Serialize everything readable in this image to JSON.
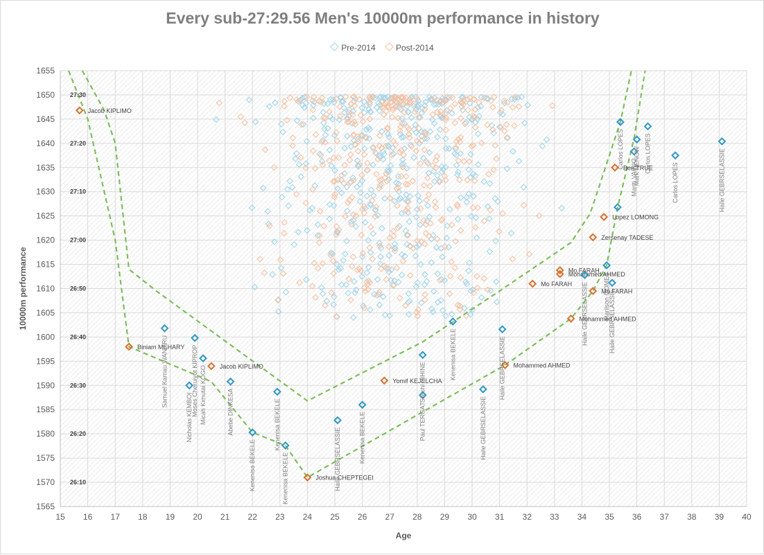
{
  "chart_data": {
    "type": "scatter",
    "title": "Every sub-27:29.56 Men's 10000m performance in history",
    "xlabel": "Age",
    "ylabel": "10000m performance",
    "xlim": [
      15,
      40
    ],
    "ylim": [
      1565,
      1655
    ],
    "x_ticks": [
      "15",
      "16",
      "17",
      "18",
      "19",
      "20",
      "21",
      "22",
      "23",
      "24",
      "25",
      "26",
      "27",
      "28",
      "29",
      "30",
      "31",
      "32",
      "33",
      "34",
      "35",
      "36",
      "37",
      "38",
      "39",
      "40"
    ],
    "y_ticks": [
      "1565",
      "1570",
      "1575",
      "1580",
      "1585",
      "1590",
      "1595",
      "1600",
      "1605",
      "1610",
      "1615",
      "1620",
      "1625",
      "1630",
      "1635",
      "1640",
      "1645",
      "1650",
      "1655"
    ],
    "time_labels": [
      {
        "text": "27:30",
        "y": 1650
      },
      {
        "text": "27:20",
        "y": 1640
      },
      {
        "text": "27:10",
        "y": 1630
      },
      {
        "text": "27:00",
        "y": 1620
      },
      {
        "text": "26:50",
        "y": 1610
      },
      {
        "text": "26:40",
        "y": 1600
      },
      {
        "text": "26:30",
        "y": 1590
      },
      {
        "text": "26:20",
        "y": 1580
      },
      {
        "text": "26:10",
        "y": 1570
      }
    ],
    "legend_position": "top",
    "grid": true,
    "colors": {
      "pre": "#9fd4ea",
      "post": "#f4bfa0",
      "pre_highlight": "#2e97c4",
      "post_highlight": "#d8702d",
      "envelope": "#7dbd5b",
      "axis_text": "#595959",
      "label_text": "#404040",
      "vertical_label": "#7f7f7f"
    },
    "series": [
      {
        "name": "Pre-2014",
        "key": "pre"
      },
      {
        "name": "Post-2014",
        "key": "post"
      }
    ],
    "highlighted": [
      {
        "series": "post",
        "x": 15.7,
        "y": 1646.8,
        "label": "Jacob KIPLIMO",
        "dir": "h"
      },
      {
        "series": "post",
        "x": 17.5,
        "y": 1598.0,
        "label": "Biniam MEHARY",
        "dir": "h"
      },
      {
        "series": "post",
        "x": 20.5,
        "y": 1594.0,
        "label": "Jacob KIPLIMO",
        "dir": "h"
      },
      {
        "series": "post",
        "x": 26.8,
        "y": 1591.0,
        "label": "Yomif KEJELCHA",
        "dir": "h"
      },
      {
        "series": "post",
        "x": 24.0,
        "y": 1571.0,
        "label": "Joshua CHEPTEGEI",
        "dir": "h"
      },
      {
        "series": "post",
        "x": 31.2,
        "y": 1594.2,
        "label": "Mohammed AHMED",
        "dir": "h"
      },
      {
        "series": "post",
        "x": 32.2,
        "y": 1611.0,
        "label": "Mo FARAH",
        "dir": "h"
      },
      {
        "series": "post",
        "x": 33.2,
        "y": 1613.8,
        "label": "Mo FARAH",
        "dir": "h"
      },
      {
        "series": "post",
        "x": 33.2,
        "y": 1613.0,
        "label": "Mohammed AHMED",
        "dir": "h"
      },
      {
        "series": "post",
        "x": 33.6,
        "y": 1603.8,
        "label": "Mohammed AHMED",
        "dir": "h"
      },
      {
        "series": "post",
        "x": 34.4,
        "y": 1609.5,
        "label": "Mo FARAH",
        "dir": "h"
      },
      {
        "series": "post",
        "x": 34.4,
        "y": 1620.6,
        "label": "Zersenay TADESE",
        "dir": "h"
      },
      {
        "series": "post",
        "x": 34.8,
        "y": 1624.8,
        "label": "Lopez LOMONG",
        "dir": "h"
      },
      {
        "series": "post",
        "x": 35.2,
        "y": 1635.0,
        "label": "Ben TRUE",
        "dir": "h"
      },
      {
        "series": "pre",
        "x": 18.8,
        "y": 1601.8,
        "label": "Samuel Kamau WANJIRU",
        "dir": "v"
      },
      {
        "series": "pre",
        "x": 19.7,
        "y": 1590.0,
        "label": "Nicholas KEMBOI",
        "dir": "v"
      },
      {
        "series": "pre",
        "x": 19.9,
        "y": 1599.8,
        "label": "Moses Cheruiyot KIPROP",
        "dir": "v"
      },
      {
        "series": "pre",
        "x": 20.2,
        "y": 1595.6,
        "label": "Micah Kimutai KOGO",
        "dir": "v"
      },
      {
        "series": "pre",
        "x": 21.2,
        "y": 1590.8,
        "label": "Abebe DINKESA",
        "dir": "v"
      },
      {
        "series": "pre",
        "x": 22.0,
        "y": 1580.3,
        "label": "Kenenisa BEKELE",
        "dir": "v"
      },
      {
        "series": "pre",
        "x": 22.9,
        "y": 1588.7,
        "label": "Kenenisa BEKELE",
        "dir": "v"
      },
      {
        "series": "pre",
        "x": 23.2,
        "y": 1577.6,
        "label": "Kenenisa BEKELE",
        "dir": "v"
      },
      {
        "series": "pre",
        "x": 25.1,
        "y": 1582.8,
        "label": "Haile GEBRSELASSIE",
        "dir": "v"
      },
      {
        "series": "pre",
        "x": 26.0,
        "y": 1586.0,
        "label": "Kenenisa BEKELE",
        "dir": "v"
      },
      {
        "series": "pre",
        "x": 28.2,
        "y": 1588.0,
        "label": "Paul TERGAT",
        "dir": "v"
      },
      {
        "series": "pre",
        "x": 28.2,
        "y": 1596.3,
        "label": "Sileshi SIHINE",
        "dir": "v"
      },
      {
        "series": "pre",
        "x": 29.3,
        "y": 1603.2,
        "label": "Kenenisa BEKELE",
        "dir": "v"
      },
      {
        "series": "pre",
        "x": 30.4,
        "y": 1589.2,
        "label": "Haile GEBRSELASSIE",
        "dir": "v"
      },
      {
        "series": "pre",
        "x": 31.1,
        "y": 1601.6,
        "label": "Haile GEBRSELASSIE",
        "dir": "v"
      },
      {
        "series": "pre",
        "x": 34.1,
        "y": 1612.8,
        "label": "Haile GEBRSELASSIE",
        "dir": "v"
      },
      {
        "series": "pre",
        "x": 34.9,
        "y": 1614.8,
        "label": "Marilson GOMES",
        "dir": "v"
      },
      {
        "series": "pre",
        "x": 35.1,
        "y": 1611.2,
        "label": "Haile GEBRSELASSIE",
        "dir": "v"
      },
      {
        "series": "pre",
        "x": 35.3,
        "y": 1626.8,
        "label": "",
        "dir": "v"
      },
      {
        "series": "pre",
        "x": 35.4,
        "y": 1644.4,
        "label": "Carlos LOPES",
        "dir": "v"
      },
      {
        "series": "pre",
        "x": 35.9,
        "y": 1638.3,
        "label": "Martti VAINIO",
        "dir": "v"
      },
      {
        "series": "pre",
        "x": 36.0,
        "y": 1640.8,
        "label": "Mark NENOW",
        "dir": "v"
      },
      {
        "series": "pre",
        "x": 36.4,
        "y": 1643.5,
        "label": "Carlos LOPES",
        "dir": "v"
      },
      {
        "series": "pre",
        "x": 37.4,
        "y": 1637.5,
        "label": "Carlos LOPES",
        "dir": "v"
      },
      {
        "series": "pre",
        "x": 39.1,
        "y": 1640.4,
        "label": "Haile GEBRSELASSIE",
        "dir": "v"
      }
    ],
    "envelope": [
      {
        "name": "outer",
        "points": [
          [
            15.3,
            1655
          ],
          [
            16.0,
            1645
          ],
          [
            17.0,
            1620
          ],
          [
            17.5,
            1598
          ],
          [
            20.5,
            1590.8
          ],
          [
            22.0,
            1580.3
          ],
          [
            23.2,
            1577.6
          ],
          [
            24.0,
            1571.0
          ],
          [
            31.2,
            1594.2
          ],
          [
            33.6,
            1603.8
          ],
          [
            34.4,
            1609.5
          ],
          [
            34.9,
            1614.8
          ],
          [
            35.3,
            1626.8
          ],
          [
            35.9,
            1641
          ],
          [
            36.3,
            1655
          ]
        ]
      },
      {
        "name": "inner",
        "points": [
          [
            15.8,
            1655
          ],
          [
            16.6,
            1646.8
          ],
          [
            17.0,
            1640
          ],
          [
            17.5,
            1614.0
          ],
          [
            18.5,
            1609.5
          ],
          [
            24.0,
            1586.8
          ],
          [
            28.2,
            1599.0
          ],
          [
            31.0,
            1609.5
          ],
          [
            33.6,
            1619.5
          ],
          [
            34.3,
            1625.5
          ],
          [
            35.4,
            1644.4
          ],
          [
            35.8,
            1655
          ]
        ]
      }
    ],
    "cloud_notes": "pre: ~450 light-blue diamonds and post: ~400 light-orange diamonds, mostly between 1605 and 1650 for ages 18-35"
  }
}
